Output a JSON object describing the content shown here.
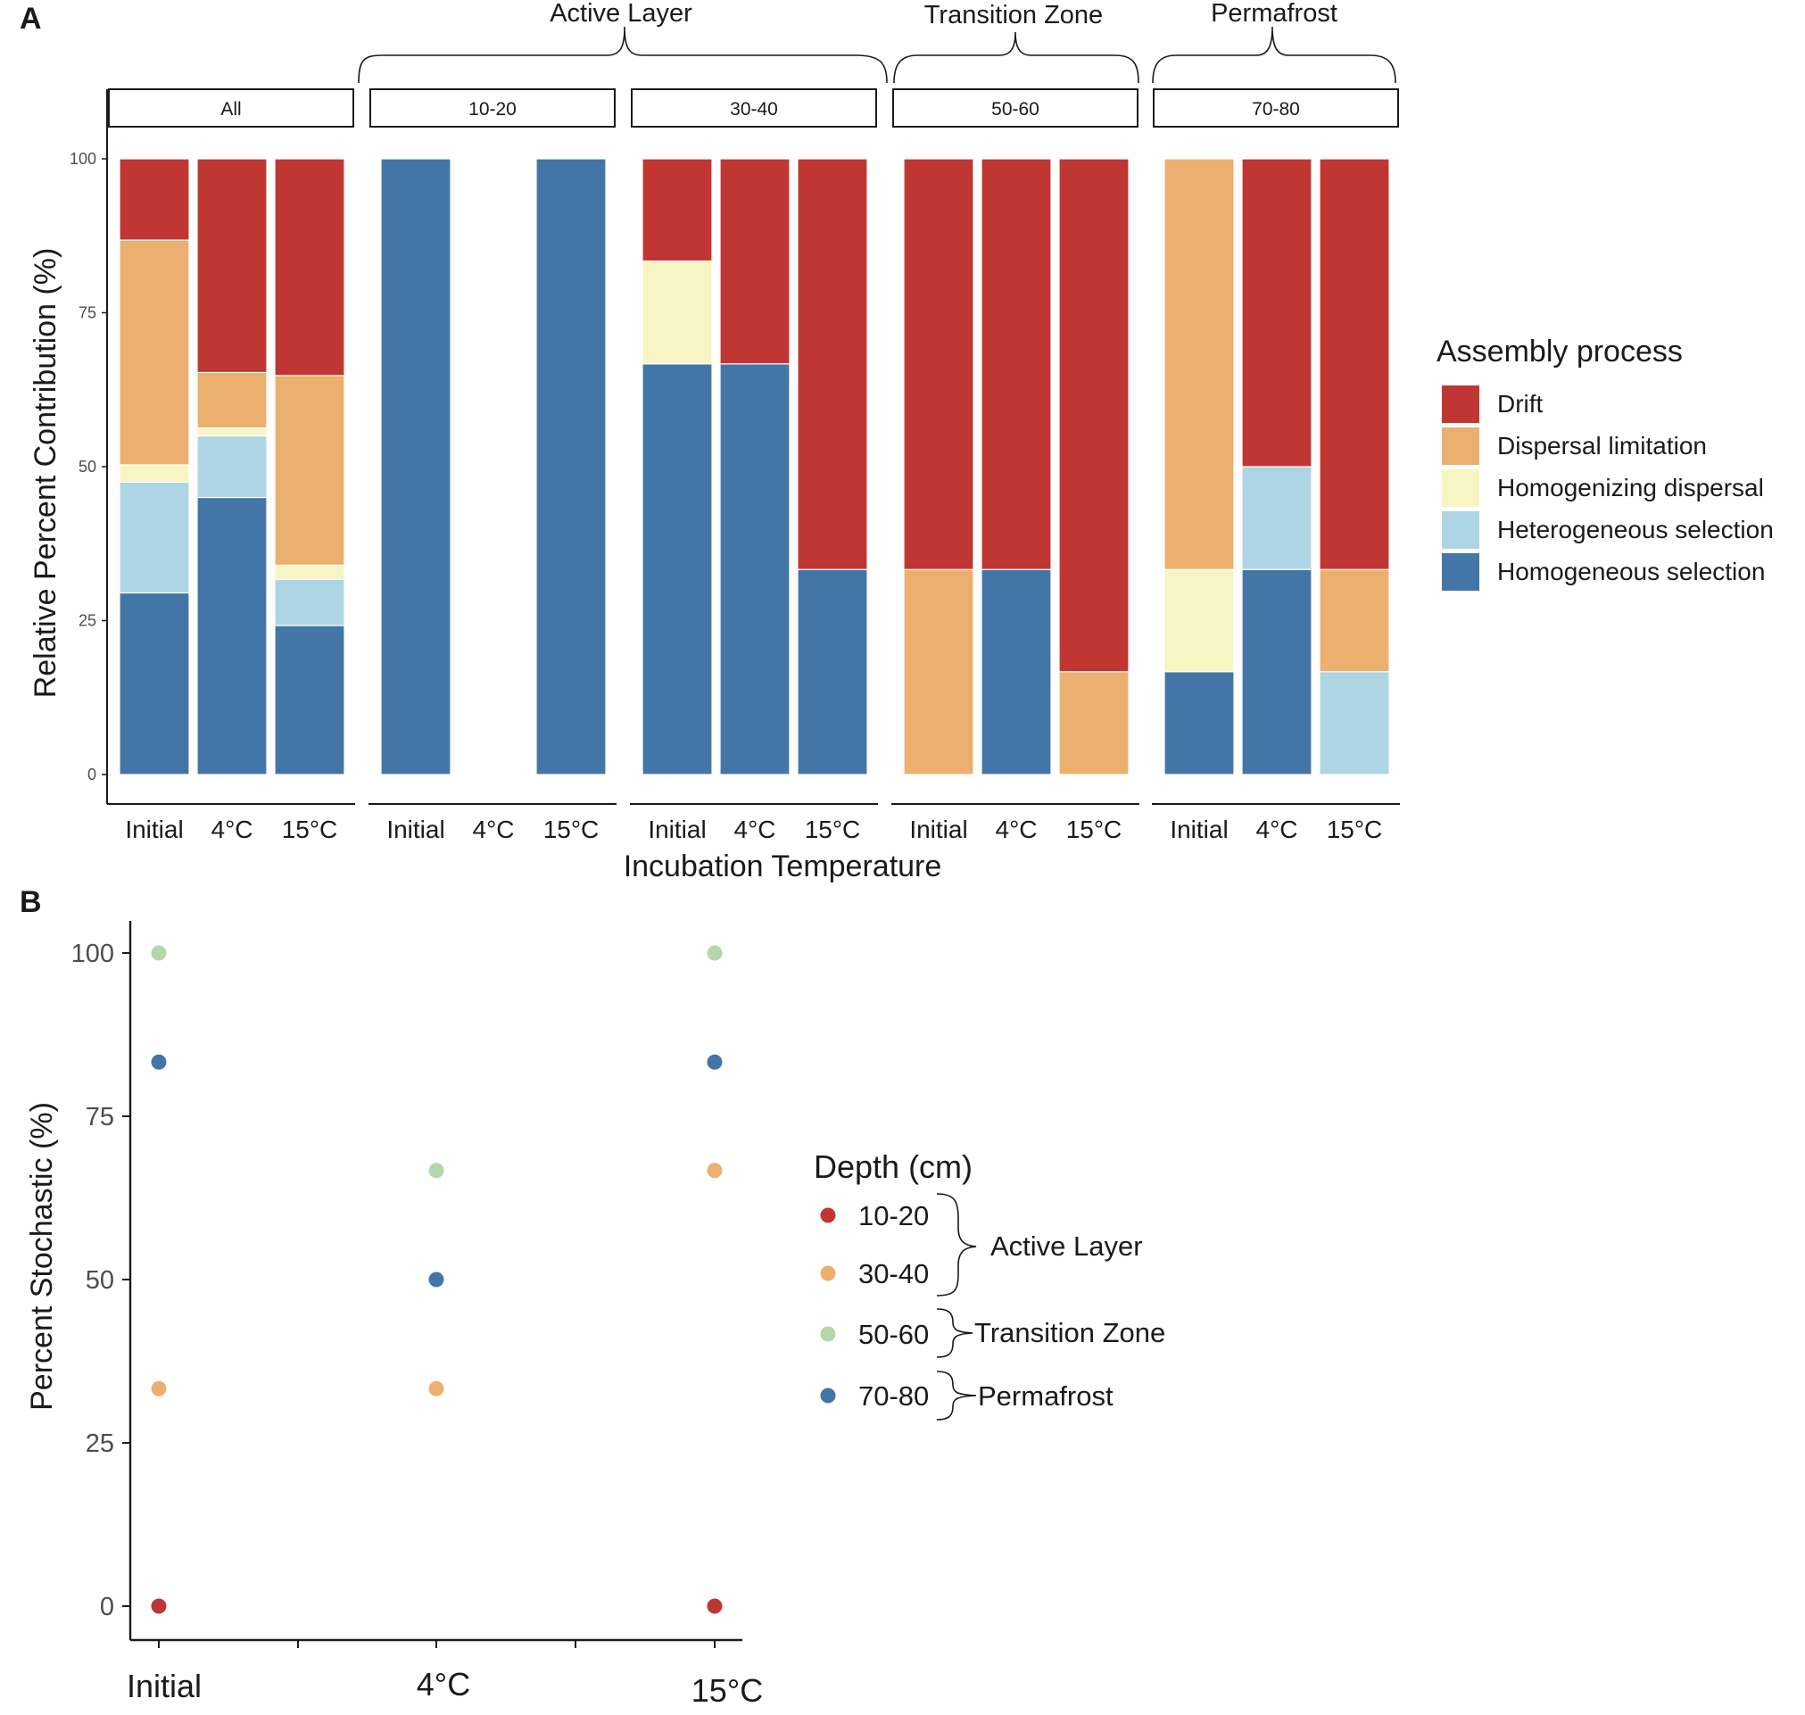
{
  "chart_data": [
    {
      "type": "bar",
      "panel": "A",
      "stacked": true,
      "title": "",
      "xlabel": "Incubation Temperature",
      "ylabel": "Relative Percent Contribution (%)",
      "ylim": [
        0,
        100
      ],
      "yticks": [
        "0",
        "25",
        "50",
        "75",
        "100"
      ],
      "categories": [
        "Initial",
        "4°C",
        "15°C"
      ],
      "group_labels": [
        {
          "label": "Active Layer",
          "facets": [
            "10-20",
            "30-40"
          ]
        },
        {
          "label": "Transition Zone",
          "facets": [
            "50-60"
          ]
        },
        {
          "label": "Permafrost",
          "facets": [
            "70-80"
          ]
        }
      ],
      "legend": {
        "title": "Assembly process",
        "placement": "right",
        "items": [
          {
            "name": "Drift",
            "color": "#C03633"
          },
          {
            "name": "Dispersal limitation",
            "color": "#EBB06F"
          },
          {
            "name": "Homogenizing dispersal",
            "color": "#F8F5C4"
          },
          {
            "name": "Heterogeneous selection",
            "color": "#ADD5E3"
          },
          {
            "name": "Homogeneous selection",
            "color": "#4475A7"
          }
        ]
      },
      "facets": [
        {
          "label": "All",
          "bars": [
            {
              "category": "Initial",
              "segments": {
                "Homogeneous selection": 29.5,
                "Heterogeneous selection": 18.0,
                "Homogenizing dispersal": 2.8,
                "Dispersal limitation": 36.5,
                "Drift": 13.2
              }
            },
            {
              "category": "4°C",
              "segments": {
                "Homogeneous selection": 45.0,
                "Heterogeneous selection": 10.0,
                "Homogenizing dispersal": 1.3,
                "Dispersal limitation": 9.0,
                "Drift": 34.7
              }
            },
            {
              "category": "15°C",
              "segments": {
                "Homogeneous selection": 24.2,
                "Heterogeneous selection": 7.5,
                "Homogenizing dispersal": 2.3,
                "Dispersal limitation": 30.8,
                "Drift": 35.2
              }
            }
          ]
        },
        {
          "label": "10-20",
          "bars": [
            {
              "category": "Initial",
              "segments": {
                "Homogeneous selection": 100,
                "Heterogeneous selection": 0,
                "Homogenizing dispersal": 0,
                "Dispersal limitation": 0,
                "Drift": 0
              }
            },
            {
              "category": "4°C",
              "segments": {
                "Homogeneous selection": 0,
                "Heterogeneous selection": 0,
                "Homogenizing dispersal": 0,
                "Dispersal limitation": 0,
                "Drift": 0
              }
            },
            {
              "category": "15°C",
              "segments": {
                "Homogeneous selection": 100,
                "Heterogeneous selection": 0,
                "Homogenizing dispersal": 0,
                "Dispersal limitation": 0,
                "Drift": 0
              }
            }
          ]
        },
        {
          "label": "30-40",
          "bars": [
            {
              "category": "Initial",
              "segments": {
                "Homogeneous selection": 66.7,
                "Heterogeneous selection": 0,
                "Homogenizing dispersal": 16.7,
                "Dispersal limitation": 0,
                "Drift": 16.6
              }
            },
            {
              "category": "4°C",
              "segments": {
                "Homogeneous selection": 66.7,
                "Heterogeneous selection": 0,
                "Homogenizing dispersal": 0,
                "Dispersal limitation": 0,
                "Drift": 33.3
              }
            },
            {
              "category": "15°C",
              "segments": {
                "Homogeneous selection": 33.3,
                "Heterogeneous selection": 0,
                "Homogenizing dispersal": 0,
                "Dispersal limitation": 0,
                "Drift": 66.7
              }
            }
          ]
        },
        {
          "label": "50-60",
          "bars": [
            {
              "category": "Initial",
              "segments": {
                "Homogeneous selection": 0,
                "Heterogeneous selection": 0,
                "Homogenizing dispersal": 0,
                "Dispersal limitation": 33.3,
                "Drift": 66.7
              }
            },
            {
              "category": "4°C",
              "segments": {
                "Homogeneous selection": 33.3,
                "Heterogeneous selection": 0,
                "Homogenizing dispersal": 0,
                "Dispersal limitation": 0,
                "Drift": 66.7
              }
            },
            {
              "category": "15°C",
              "segments": {
                "Homogeneous selection": 0,
                "Heterogeneous selection": 0,
                "Homogenizing dispersal": 0,
                "Dispersal limitation": 16.7,
                "Drift": 83.3
              }
            }
          ]
        },
        {
          "label": "70-80",
          "bars": [
            {
              "category": "Initial",
              "segments": {
                "Homogeneous selection": 16.7,
                "Heterogeneous selection": 0,
                "Homogenizing dispersal": 16.6,
                "Dispersal limitation": 66.7,
                "Drift": 0
              }
            },
            {
              "category": "4°C",
              "segments": {
                "Homogeneous selection": 33.3,
                "Heterogeneous selection": 16.7,
                "Homogenizing dispersal": 0,
                "Dispersal limitation": 0,
                "Drift": 50.0
              }
            },
            {
              "category": "15°C",
              "segments": {
                "Homogeneous selection": 0,
                "Heterogeneous selection": 16.7,
                "Homogenizing dispersal": 0,
                "Dispersal limitation": 16.6,
                "Drift": 66.7
              }
            }
          ]
        }
      ]
    },
    {
      "type": "scatter",
      "panel": "B",
      "title": "",
      "xlabel": "",
      "ylabel": "Percent Stochastic (%)",
      "ylim": [
        0,
        100
      ],
      "yticks": [
        "0",
        "25",
        "50",
        "75",
        "100"
      ],
      "categories": [
        "Initial",
        "4°C",
        "15°C"
      ],
      "legend": {
        "title": "Depth (cm)",
        "placement": "right",
        "items": [
          {
            "name": "10-20",
            "color": "#C03633",
            "group": "Active Layer"
          },
          {
            "name": "30-40",
            "color": "#EBB06F",
            "group": "Active Layer"
          },
          {
            "name": "50-60",
            "color": "#B5D6A8",
            "group": "Transition Zone"
          },
          {
            "name": "70-80",
            "color": "#4475A7",
            "group": "Permafrost"
          }
        ],
        "groups": [
          "Active Layer",
          "Transition Zone",
          "Permafrost"
        ]
      },
      "series": [
        {
          "name": "10-20",
          "values": [
            0,
            null,
            0
          ]
        },
        {
          "name": "30-40",
          "values": [
            33.3,
            33.3,
            66.7
          ]
        },
        {
          "name": "50-60",
          "values": [
            100,
            66.7,
            100
          ]
        },
        {
          "name": "70-80",
          "values": [
            83.3,
            50,
            83.3
          ]
        }
      ]
    }
  ],
  "panel_labels": [
    "A",
    "B"
  ]
}
